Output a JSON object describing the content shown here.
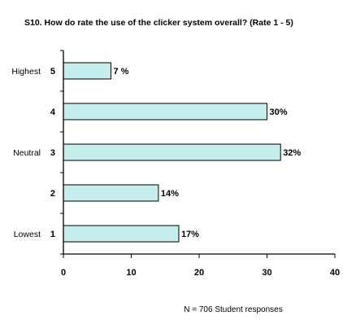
{
  "chart_data": {
    "type": "bar",
    "orientation": "horizontal",
    "title": "S10. How do rate the use of the clicker system overall? (Rate 1 - 5)",
    "categories": [
      "5",
      "4",
      "3",
      "2",
      "1"
    ],
    "category_descriptors": [
      "Highest",
      "",
      "Neutral",
      "",
      "Lowest"
    ],
    "values": [
      7,
      30,
      32,
      14,
      17
    ],
    "value_labels": [
      "7 %",
      "30%",
      "32%",
      "14%",
      "17%"
    ],
    "xlim": [
      0,
      40
    ],
    "xticks": [
      "0",
      "10",
      "20",
      "30",
      "40"
    ],
    "xlabel": "",
    "ylabel": "",
    "grid": false,
    "legend": "none",
    "bar_color": "#c6eeee",
    "bar_edge_color": "#000000",
    "note": "N = 706 Student responses"
  }
}
